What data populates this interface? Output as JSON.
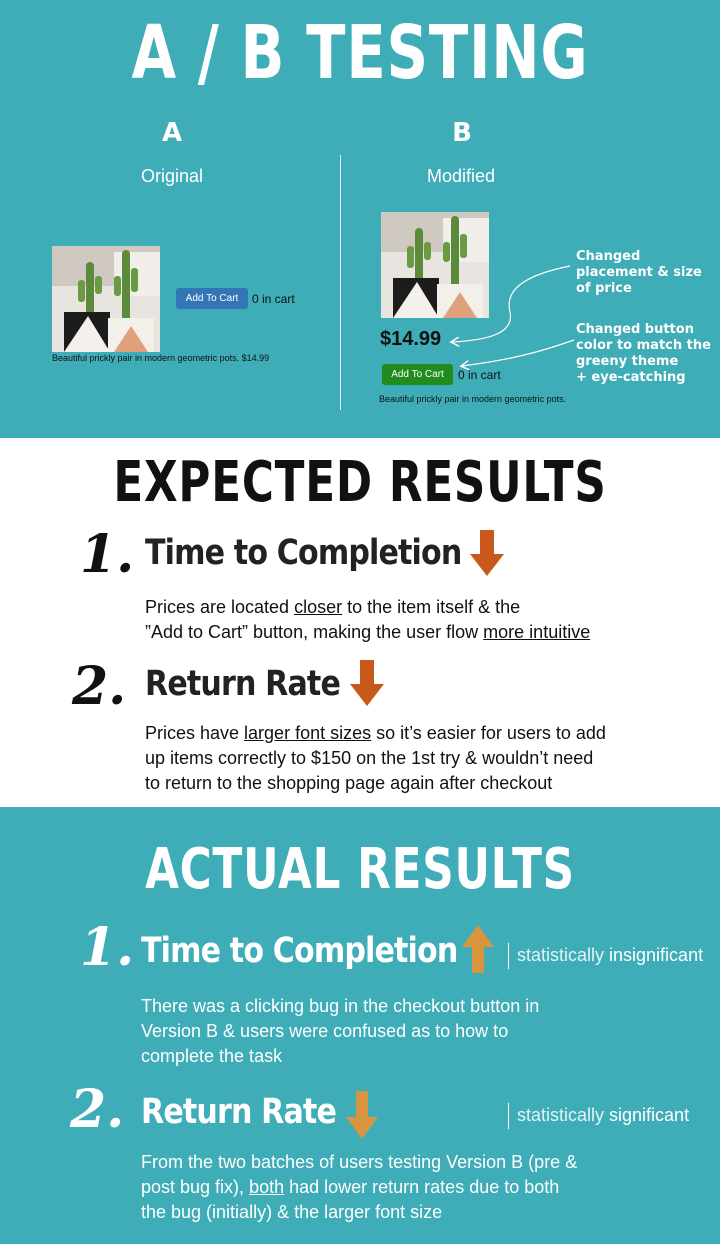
{
  "ab_section": {
    "title": "A / B TESTING",
    "variant_a": {
      "letter": "A",
      "label": "Original"
    },
    "variant_b": {
      "letter": "B",
      "label": "Modified"
    },
    "product_a": {
      "button_label": "Add To Cart",
      "cart_count": "0 in cart",
      "caption": "Beautiful prickly pair in modern geometric pots. $14.99",
      "button_color": "#3276b8"
    },
    "product_b": {
      "price": "$14.99",
      "button_label": "Add To Cart",
      "cart_count": "0 in cart",
      "caption": "Beautiful prickly pair in modern geometric pots.",
      "button_color": "#228b1e"
    },
    "annotations": {
      "price_note": [
        "Changed",
        "placement & size",
        "of price"
      ],
      "button_note": [
        "Changed button",
        "color to match the",
        "greeny theme",
        "+ eye-catching"
      ]
    }
  },
  "expected": {
    "title": "EXPECTED RESULTS",
    "items": [
      {
        "number": "1.",
        "heading": "Time to Completion",
        "arrow": "down-arrow-icon",
        "text_1": "Prices are located ",
        "u1": "closer",
        "text_2": " to the item itself & the",
        "text_3": "”Add to Cart” button, making the user flow ",
        "u2": "more intuitive"
      },
      {
        "number": "2.",
        "heading": "Return Rate",
        "arrow": "down-arrow-icon",
        "text_1": "Prices have ",
        "u1": "larger font sizes",
        "text_2": " so it’s easier for users to add",
        "text_3": "up items correctly to $150 on the 1st try & wouldn’t need",
        "text_4": "to return to the shopping page again after checkout"
      }
    ]
  },
  "actual": {
    "title": "ACTUAL RESULTS",
    "items": [
      {
        "number": "1.",
        "heading": "Time to Completion",
        "arrow": "up-arrow-icon",
        "stat_pre": "statistically ",
        "stat_word": "insignificant",
        "line_1": "There was a clicking bug in the checkout button in",
        "line_2": "Version B & users were confused as to how to",
        "line_3": "complete the task"
      },
      {
        "number": "2.",
        "heading": "Return Rate",
        "arrow": "down-arrow-icon",
        "stat_pre": "statistically ",
        "stat_word": "significant",
        "line_1": "From the two batches of users testing Version B (pre &",
        "line_2a": "post bug fix), ",
        "line_2u": "both",
        "line_2b": " had lower return rates due to both",
        "line_3": "the bug (initially) & the larger font size"
      }
    ]
  },
  "colors": {
    "teal_background": "#3eadb7",
    "expected_arrow": "#c8591a",
    "actual_arrow": "#d9953e"
  }
}
